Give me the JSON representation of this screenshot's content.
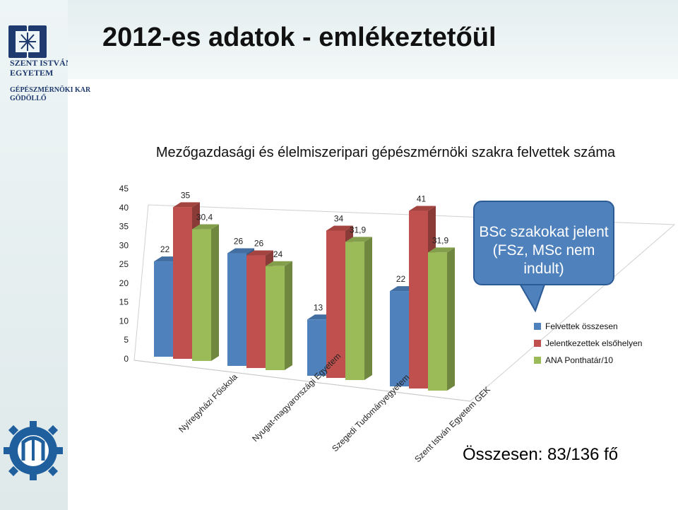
{
  "slide": {
    "title": "2012-es adatok - emlékeztetőül",
    "logo": {
      "line1": "SZENT ISTVÁN",
      "line2": "EGYETEM",
      "line3": "GÉPÉSZMÉRNÖKI KAR",
      "line4": "GÖDÖLLŐ"
    },
    "callout": "BSc szakokat jelent (FSz, MSc nem indult)",
    "total": "Összesen:  83/136 fő"
  },
  "colors": {
    "blue": "#4f81bd",
    "red": "#c0504d",
    "green": "#9bbb59"
  },
  "chart_data": {
    "type": "bar",
    "title": "Mezőgazdasági és élelmiszeripari gépészmérnöki szakra felvettek száma",
    "categories": [
      "Nyíregyházi Főiskola",
      "Nyugat-magyarországi Egyetem",
      "Szegedi Tudományegyetem",
      "Szent István Egyetem GEK"
    ],
    "series": [
      {
        "name": "Felvettek összesen",
        "values": [
          22,
          26,
          13,
          22
        ],
        "labels": [
          "22",
          "26",
          "13",
          "22"
        ]
      },
      {
        "name": "Jelentkezettek elsőhelyen",
        "values": [
          35,
          26,
          34,
          41
        ],
        "labels": [
          "35",
          "26",
          "34",
          "41"
        ]
      },
      {
        "name": "ANA Ponthatár/10",
        "values": [
          30.4,
          24,
          31.9,
          31.9
        ],
        "labels": [
          "30,4",
          "24",
          "31,9",
          "31,9"
        ]
      }
    ],
    "yticks": [
      "0",
      "5",
      "10",
      "15",
      "20",
      "25",
      "30",
      "35",
      "40",
      "45"
    ],
    "ylim": [
      0,
      45
    ],
    "legend_position": "right",
    "grid": false
  }
}
